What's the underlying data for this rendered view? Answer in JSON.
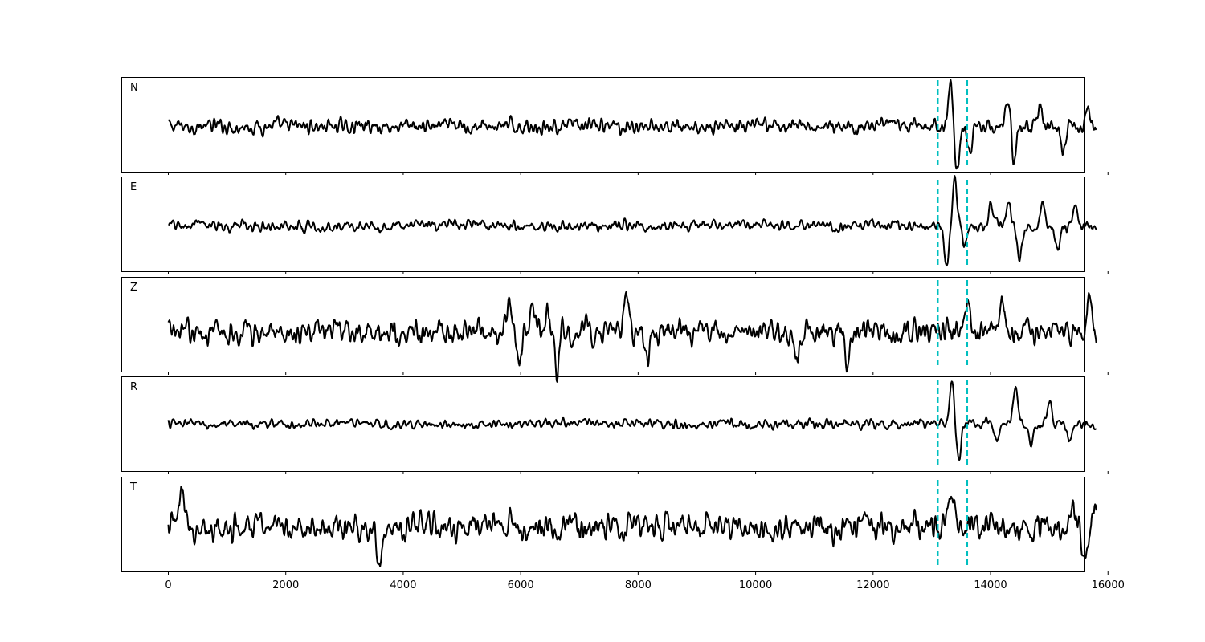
{
  "chart_data": {
    "type": "line",
    "title": "",
    "xlabel": "",
    "ylabel": "",
    "xlim": [
      -800,
      15600
    ],
    "xticks": [
      0,
      2000,
      4000,
      6000,
      8000,
      10000,
      12000,
      14000,
      16000
    ],
    "xtick_labels": [
      "0",
      "2000",
      "4000",
      "6000",
      "8000",
      "10000",
      "12000",
      "14000",
      "16000"
    ],
    "x_range": [
      0,
      15800
    ],
    "shared_x": true,
    "yticks_shown": false,
    "grid": false,
    "legend": "none",
    "line_color": "#000000",
    "marker_color": "#00bfbf",
    "markers": [
      13100,
      13600
    ],
    "panels": [
      {
        "label": "N",
        "baseline": 0.48,
        "noise_amplitude": 0.07,
        "events": [
          {
            "x": 13320,
            "value": 0.47
          },
          {
            "x": 13430,
            "value": -0.48
          },
          {
            "x": 13640,
            "value": -0.3
          },
          {
            "x": 14300,
            "value": 0.28
          },
          {
            "x": 14400,
            "value": -0.38
          },
          {
            "x": 14850,
            "value": 0.22
          },
          {
            "x": 15230,
            "value": -0.28
          },
          {
            "x": 15650,
            "value": 0.2
          }
        ]
      },
      {
        "label": "E",
        "baseline": 0.48,
        "noise_amplitude": 0.05,
        "events": [
          {
            "x": 13250,
            "value": -0.42
          },
          {
            "x": 13390,
            "value": 0.48
          },
          {
            "x": 13560,
            "value": -0.2
          },
          {
            "x": 14000,
            "value": 0.2
          },
          {
            "x": 14300,
            "value": 0.25
          },
          {
            "x": 14490,
            "value": -0.38
          },
          {
            "x": 14900,
            "value": 0.22
          },
          {
            "x": 15150,
            "value": -0.25
          },
          {
            "x": 15450,
            "value": 0.2
          }
        ]
      },
      {
        "label": "Z",
        "baseline": 0.42,
        "noise_amplitude": 0.12,
        "events": [
          {
            "x": 5800,
            "value": 0.25
          },
          {
            "x": 5980,
            "value": -0.35
          },
          {
            "x": 6200,
            "value": 0.26
          },
          {
            "x": 6450,
            "value": 0.25
          },
          {
            "x": 6620,
            "value": -0.5
          },
          {
            "x": 7800,
            "value": 0.32
          },
          {
            "x": 8150,
            "value": -0.3
          },
          {
            "x": 10700,
            "value": -0.32
          },
          {
            "x": 11550,
            "value": -0.32
          },
          {
            "x": 13600,
            "value": 0.3
          },
          {
            "x": 14200,
            "value": 0.32
          },
          {
            "x": 15680,
            "value": 0.3
          }
        ]
      },
      {
        "label": "R",
        "baseline": 0.5,
        "noise_amplitude": 0.045,
        "events": [
          {
            "x": 13340,
            "value": 0.42
          },
          {
            "x": 13460,
            "value": -0.4
          },
          {
            "x": 14120,
            "value": -0.18
          },
          {
            "x": 14420,
            "value": 0.35
          },
          {
            "x": 14700,
            "value": -0.2
          },
          {
            "x": 15000,
            "value": 0.2
          },
          {
            "x": 15350,
            "value": -0.2
          }
        ]
      },
      {
        "label": "T",
        "baseline": 0.47,
        "noise_amplitude": 0.13,
        "events": [
          {
            "x": 230,
            "value": 0.4
          },
          {
            "x": 3600,
            "value": -0.35
          },
          {
            "x": 13320,
            "value": 0.45
          },
          {
            "x": 15400,
            "value": 0.3
          },
          {
            "x": 15610,
            "value": -0.46
          },
          {
            "x": 15800,
            "value": 0.28
          }
        ]
      }
    ]
  }
}
